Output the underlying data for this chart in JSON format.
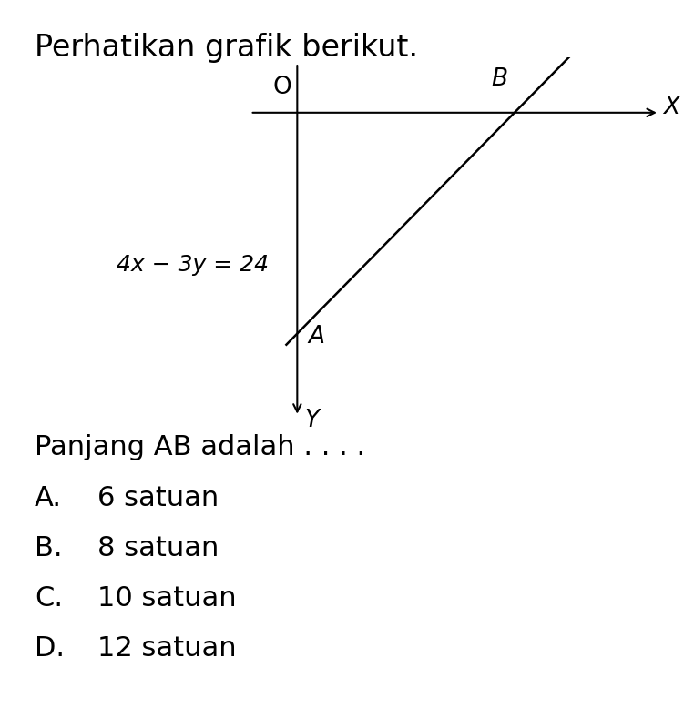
{
  "title": "Perhatikan grafik berikut.",
  "equation_label": "4x − 3y = 24",
  "origin_label": "O",
  "x_axis_label": "X",
  "y_axis_label": "Y",
  "point_A": [
    0,
    -8
  ],
  "point_B": [
    6,
    0
  ],
  "point_A_label": "A",
  "point_B_label": "B",
  "line_color": "#000000",
  "bg_color": "#ffffff",
  "text_color": "#000000",
  "title_fontsize": 24,
  "label_fontsize": 19,
  "equation_fontsize": 18,
  "answer_fontsize": 22,
  "question_text": "Panjang AB adalah . . . .",
  "options": [
    [
      "A.",
      "6 satuan"
    ],
    [
      "B.",
      "8 satuan"
    ],
    [
      "C.",
      "10 satuan"
    ],
    [
      "D.",
      "12 satuan"
    ]
  ],
  "xlim": [
    -1.5,
    10
  ],
  "ylim": [
    -11,
    2
  ]
}
